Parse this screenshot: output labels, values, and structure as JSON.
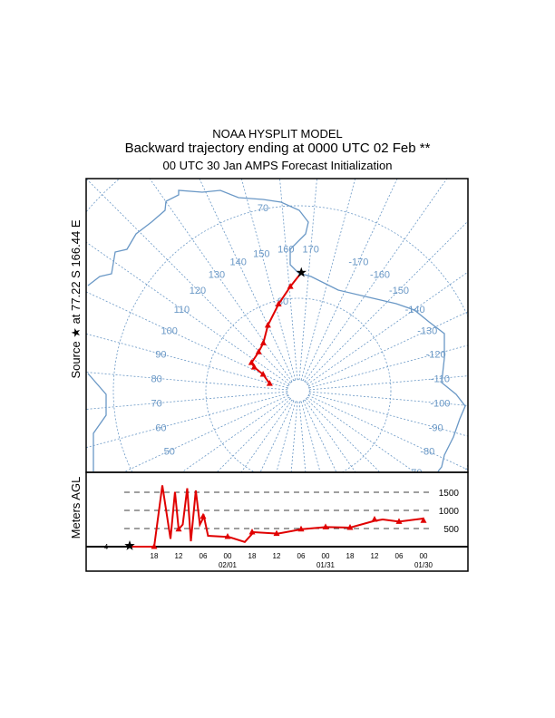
{
  "title": {
    "line1": "NOAA HYSPLIT MODEL",
    "line2": "Backward trajectory ending at 0000 UTC 02 Feb **",
    "line3": "00 UTC 30 Jan    AMPS  Forecast Initialization"
  },
  "source_label": "Source ★ at  77.22 S  166.44 E",
  "height_label": "Meters AGL",
  "colors": {
    "trajectory": "#e00000",
    "map": "#6a98c6",
    "frame": "#000000"
  },
  "chart_data": [
    {
      "type": "map-trajectory",
      "projection": "south polar stereographic",
      "source": {
        "lat": -77.22,
        "lon": 166.44
      },
      "lat_circles": [
        -80,
        -70,
        -60
      ],
      "lat_labels": [
        "70",
        "80"
      ],
      "lon_labels": [
        "50",
        "60",
        "70",
        "80",
        "90",
        "100",
        "110",
        "120",
        "130",
        "140",
        "150",
        "160",
        "170",
        "-170",
        "-160",
        "-150",
        "-140",
        "-130",
        "-120",
        "-110",
        "-100",
        "-90",
        "-80",
        "-70"
      ],
      "trajectory": [
        {
          "lat": -77.22,
          "lon": 166.44
        },
        {
          "lat": -78.7,
          "lon": 160.6
        },
        {
          "lat": -80.4,
          "lon": 152.1
        },
        {
          "lat": -82.2,
          "lon": 140.0
        },
        {
          "lat": -83.6,
          "lon": 128.7
        },
        {
          "lat": -84.0,
          "lon": 119.3
        },
        {
          "lat": -84.1,
          "lon": 105.8
        },
        {
          "lat": -84.6,
          "lon": 103.0
        },
        {
          "lat": -85.8,
          "lon": 99.8
        },
        {
          "lat": -86.8,
          "lon": 89.0
        }
      ]
    },
    {
      "type": "line",
      "xlabel": "",
      "ylabel": "Meters AGL",
      "start_height_label": "4",
      "y_gridlines": [
        500,
        1000,
        1500
      ],
      "y_tick_labels": [
        "500",
        "1000",
        "1500"
      ],
      "x_tick_labels": [
        "18",
        "12",
        "06",
        "00",
        "18",
        "12",
        "06",
        "00",
        "18",
        "12",
        "06",
        "00"
      ],
      "x_date_labels": [
        {
          "after_tick": 3,
          "text": "02/01"
        },
        {
          "after_tick": 7,
          "text": "01/31"
        },
        {
          "after_tick": 11,
          "text": "01/30"
        }
      ],
      "x_hours_back_range": [
        0,
        72
      ],
      "ylim": [
        0,
        1800
      ],
      "series": [
        {
          "name": "trajectory height",
          "hours_back": [
            0,
            6,
            8,
            10,
            11.1,
            12,
            13,
            14.1,
            15,
            16.2,
            17.2,
            18.2,
            19.2,
            23,
            24.1,
            28.2,
            30.4,
            36.3,
            42.2,
            48.1,
            54,
            59.9,
            62,
            66,
            71.9,
            72
          ],
          "meters": [
            0,
            0,
            1690,
            215,
            1510,
            480,
            610,
            1610,
            150,
            1550,
            610,
            830,
            300,
            275,
            275,
            130,
            400,
            360,
            480,
            540,
            525,
            710,
            750,
            690,
            775,
            720
          ],
          "marker_hours": [
            6,
            12,
            18,
            24,
            30,
            36,
            42,
            48,
            54,
            60,
            66,
            72
          ]
        }
      ]
    }
  ]
}
